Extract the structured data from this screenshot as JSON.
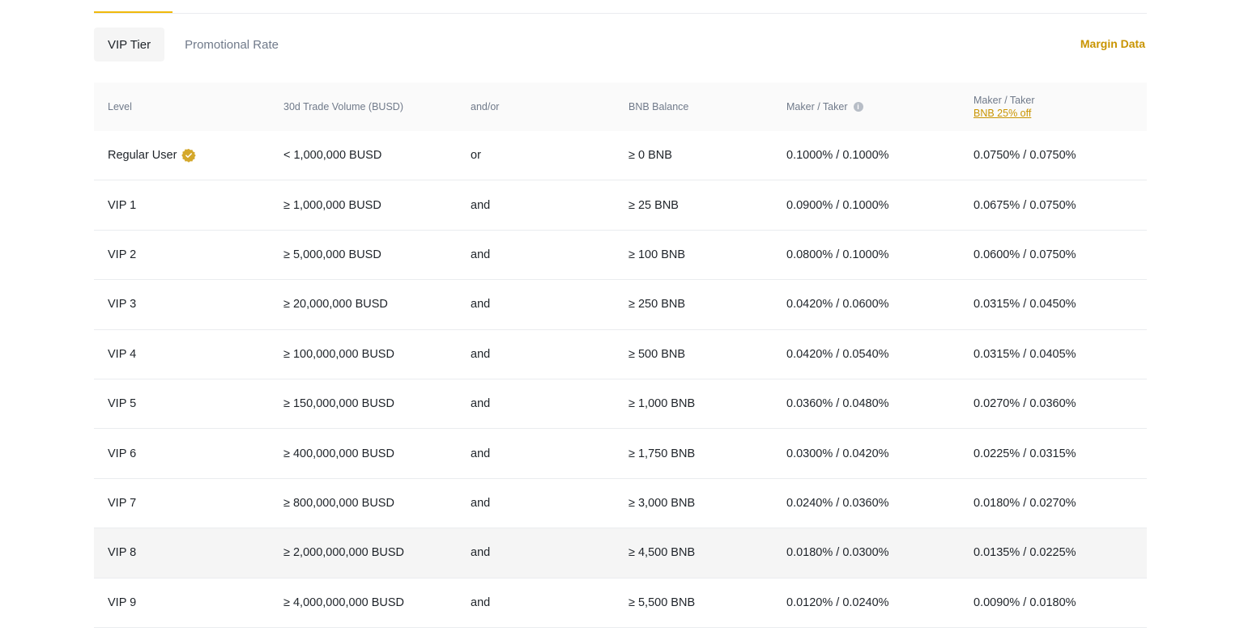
{
  "tabs": [
    {
      "label": "VIP Tier",
      "active": true
    },
    {
      "label": "Promotional Rate",
      "active": false
    }
  ],
  "margin_link": "Margin Data",
  "table": {
    "headers": {
      "level": "Level",
      "volume": "30d Trade Volume (BUSD)",
      "andor": "and/or",
      "bnb": "BNB Balance",
      "maker_taker": "Maker / Taker",
      "maker_taker_bnb": "Maker / Taker",
      "bnb_discount": "BNB 25% off"
    },
    "rows": [
      {
        "level": "Regular User",
        "volume": "< 1,000,000 BUSD",
        "andor": "or",
        "bnb": "≥ 0 BNB",
        "fee": "0.1000% / 0.1000%",
        "fee_bnb": "0.0750% / 0.0750%"
      },
      {
        "level": "VIP 1",
        "volume": "≥ 1,000,000 BUSD",
        "andor": "and",
        "bnb": "≥ 25 BNB",
        "fee": "0.0900% / 0.1000%",
        "fee_bnb": "0.0675% / 0.0750%"
      },
      {
        "level": "VIP 2",
        "volume": "≥ 5,000,000 BUSD",
        "andor": "and",
        "bnb": "≥ 100 BNB",
        "fee": "0.0800% / 0.1000%",
        "fee_bnb": "0.0600% / 0.0750%"
      },
      {
        "level": "VIP 3",
        "volume": "≥ 20,000,000 BUSD",
        "andor": "and",
        "bnb": "≥ 250 BNB",
        "fee": "0.0420% / 0.0600%",
        "fee_bnb": "0.0315% / 0.0450%"
      },
      {
        "level": "VIP 4",
        "volume": "≥ 100,000,000 BUSD",
        "andor": "and",
        "bnb": "≥ 500 BNB",
        "fee": "0.0420% / 0.0540%",
        "fee_bnb": "0.0315% / 0.0405%"
      },
      {
        "level": "VIP 5",
        "volume": "≥ 150,000,000 BUSD",
        "andor": "and",
        "bnb": "≥ 1,000 BNB",
        "fee": "0.0360% / 0.0480%",
        "fee_bnb": "0.0270% / 0.0360%"
      },
      {
        "level": "VIP 6",
        "volume": "≥ 400,000,000 BUSD",
        "andor": "and",
        "bnb": "≥ 1,750 BNB",
        "fee": "0.0300% / 0.0420%",
        "fee_bnb": "0.0225% / 0.0315%"
      },
      {
        "level": "VIP 7",
        "volume": "≥ 800,000,000 BUSD",
        "andor": "and",
        "bnb": "≥ 3,000 BNB",
        "fee": "0.0240% / 0.0360%",
        "fee_bnb": "0.0180% / 0.0270%"
      },
      {
        "level": "VIP 8",
        "volume": "≥ 2,000,000,000 BUSD",
        "andor": "and",
        "bnb": "≥ 4,500 BNB",
        "fee": "0.0180% / 0.0300%",
        "fee_bnb": "0.0135% / 0.0225%"
      },
      {
        "level": "VIP 9",
        "volume": "≥ 4,000,000,000 BUSD",
        "andor": "and",
        "bnb": "≥ 5,500 BNB",
        "fee": "0.0120% / 0.0240%",
        "fee_bnb": "0.0090% / 0.0180%"
      }
    ]
  },
  "icons": {
    "info": "info-icon",
    "badge": "verified-badge-icon"
  },
  "colors": {
    "accent": "#f0b90b",
    "link": "#c99400",
    "text": "#1e2329",
    "muted": "#707a8a"
  }
}
